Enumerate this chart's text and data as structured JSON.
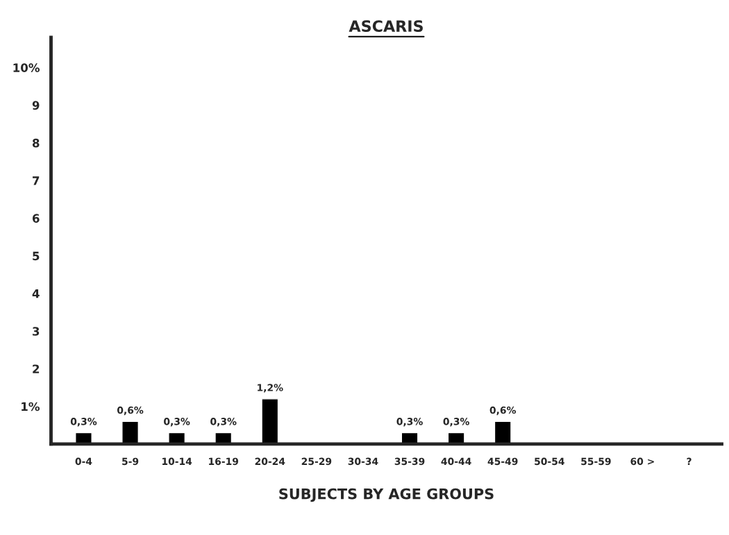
{
  "chart_data": {
    "type": "bar",
    "title": "ASCARIS",
    "xlabel": "SUBJECTS BY AGE GROUPS",
    "categories": [
      "0-4",
      "5-9",
      "10-14",
      "16-19",
      "20-24",
      "25-29",
      "30-34",
      "35-39",
      "40-44",
      "45-49",
      "50-54",
      "55-59",
      "60 >",
      "?"
    ],
    "values": [
      0.3,
      0.6,
      0.3,
      0.3,
      1.2,
      null,
      null,
      0.3,
      0.3,
      0.6,
      null,
      null,
      null,
      null
    ],
    "value_labels": [
      "0,3%",
      "0,6%",
      "0,3%",
      "0,3%",
      "1,2%",
      null,
      null,
      "0,3%",
      "0,3%",
      "0,6%",
      null,
      null,
      null,
      null
    ],
    "color": "#000000",
    "ylim": [
      0,
      10.8
    ],
    "yticks": [
      {
        "value": 1,
        "label": "1%"
      },
      2,
      3,
      4,
      5,
      6,
      7,
      8,
      9,
      {
        "value": 10,
        "label": "10%"
      }
    ],
    "grid": false
  }
}
